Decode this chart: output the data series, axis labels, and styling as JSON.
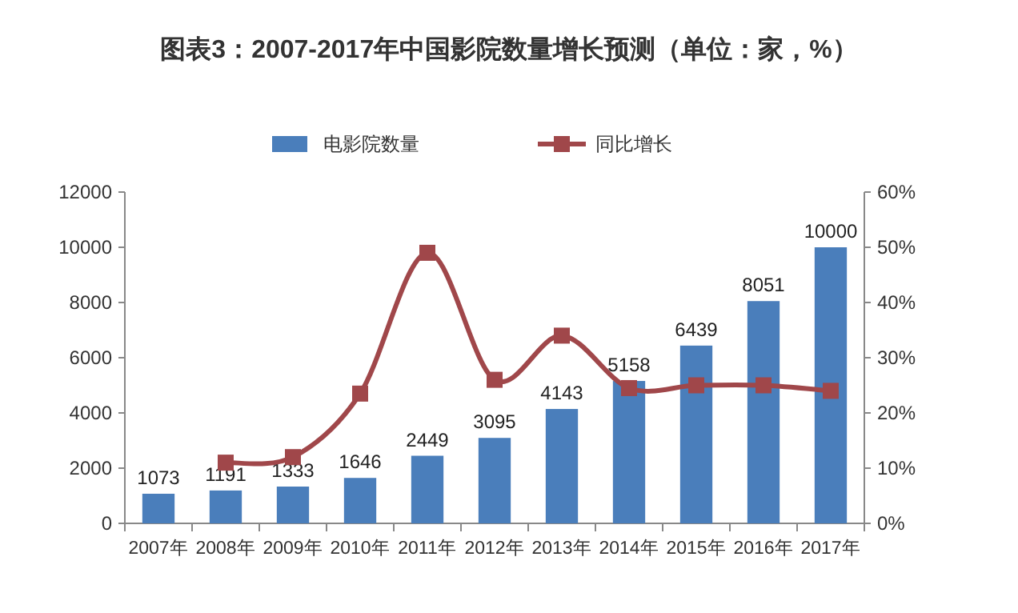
{
  "chart_data": {
    "type": "bar",
    "title": "图表3：2007-2017年中国影院数量增长预测（单位：家，%）",
    "categories": [
      "2007年",
      "2008年",
      "2009年",
      "2010年",
      "2011年",
      "2012年",
      "2013年",
      "2014年",
      "2015年",
      "2016年",
      "2017年"
    ],
    "series": [
      {
        "name": "电影院数量",
        "color": "#4a7ebb",
        "values": [
          1073,
          1191,
          1333,
          1646,
          2449,
          3095,
          4143,
          5158,
          6439,
          8051,
          10000
        ],
        "value_labels": [
          "1073",
          "1191",
          "1333",
          "1646",
          "2449",
          "3095",
          "4143",
          "5158",
          "6439",
          "8051",
          "10000"
        ]
      },
      {
        "name": "同比增长",
        "type": "line",
        "axis": "y2",
        "color": "#a0474a",
        "marker": "square",
        "values": [
          null,
          11,
          12,
          23.5,
          49,
          26,
          34,
          24.5,
          25,
          25,
          24
        ]
      }
    ],
    "ylim": [
      0,
      12000
    ],
    "yticks": [
      0,
      2000,
      4000,
      6000,
      8000,
      10000,
      12000
    ],
    "y2lim": [
      0,
      60
    ],
    "y2ticks": [
      {
        "value": 0,
        "label": "0%"
      },
      {
        "value": 10,
        "label": "10%"
      },
      {
        "value": 20,
        "label": "20%"
      },
      {
        "value": 30,
        "label": "30%"
      },
      {
        "value": 40,
        "label": "40%"
      },
      {
        "value": 50,
        "label": "50%"
      },
      {
        "value": 60,
        "label": "60%"
      }
    ],
    "legend": "top",
    "grid": false
  }
}
